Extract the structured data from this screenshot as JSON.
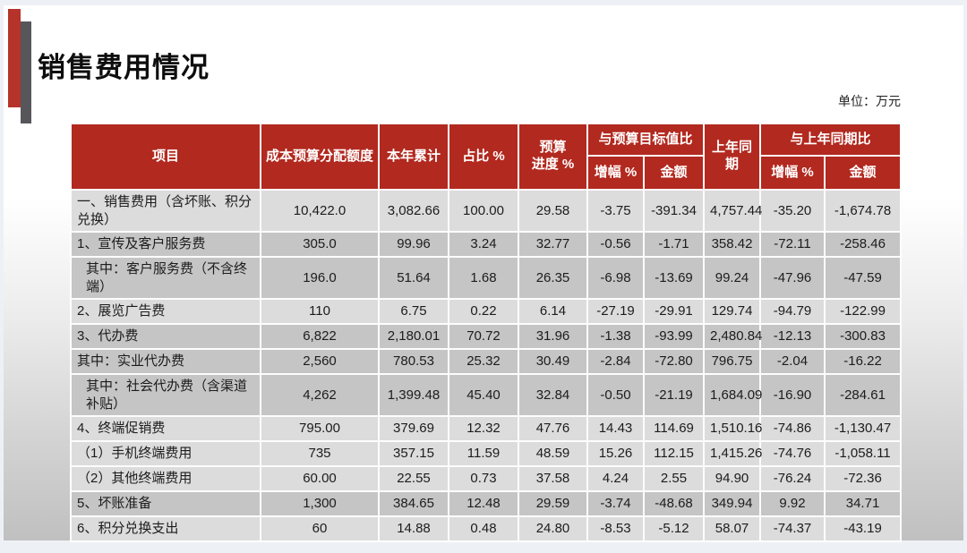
{
  "slide": {
    "title": "销售费用情况",
    "unit_note": "单位：万元",
    "colors": {
      "header_red": "#b2291f",
      "accent_red": "#b5332a",
      "accent_gray": "#57565a",
      "row_light": "#dcdcdc",
      "row_dark": "#c5c5c5"
    }
  },
  "table": {
    "header": {
      "item": "项目",
      "budget_quota": "成本预算分配额度",
      "ytd_total": "本年累计",
      "share_pct": "占比 %",
      "budget_progress_pct": "预算\n进度 %",
      "vs_budget_target": "与预算目标值比",
      "vs_budget_growth_pct": "增幅 %",
      "vs_budget_amount": "金额",
      "last_year_same_period": "上年同期",
      "vs_last_year": "与上年同期比",
      "vs_last_year_growth_pct": "增幅 %",
      "vs_last_year_amount": "金额"
    },
    "rows": [
      {
        "label": "一、销售费用（含坏账、积分兑换）",
        "shade": "light",
        "indent": false,
        "values": [
          "10,422.0",
          "3,082.66",
          "100.00",
          "29.58",
          "-3.75",
          "-391.34",
          "4,757.44",
          "-35.20",
          "-1,674.78"
        ]
      },
      {
        "label": "1、宣传及客户服务费",
        "shade": "dark",
        "indent": false,
        "values": [
          "305.0",
          "99.96",
          "3.24",
          "32.77",
          "-0.56",
          "-1.71",
          "358.42",
          "-72.11",
          "-258.46"
        ]
      },
      {
        "label": "其中：客户服务费（不含终端）",
        "shade": "dark",
        "indent": true,
        "values": [
          "196.0",
          "51.64",
          "1.68",
          "26.35",
          "-6.98",
          "-13.69",
          "99.24",
          "-47.96",
          "-47.59"
        ]
      },
      {
        "label": "2、展览广告费",
        "shade": "light",
        "indent": false,
        "values": [
          "110",
          "6.75",
          "0.22",
          "6.14",
          "-27.19",
          "-29.91",
          "129.74",
          "-94.79",
          "-122.99"
        ]
      },
      {
        "label": "3、代办费",
        "shade": "dark",
        "indent": false,
        "values": [
          "6,822",
          "2,180.01",
          "70.72",
          "31.96",
          "-1.38",
          "-93.99",
          "2,480.84",
          "-12.13",
          "-300.83"
        ]
      },
      {
        "label": "其中：实业代办费",
        "shade": "dark",
        "indent": false,
        "values": [
          "2,560",
          "780.53",
          "25.32",
          "30.49",
          "-2.84",
          "-72.80",
          "796.75",
          "-2.04",
          "-16.22"
        ]
      },
      {
        "label": "其中：社会代办费（含渠道补贴）",
        "shade": "dark",
        "indent": true,
        "values": [
          "4,262",
          "1,399.48",
          "45.40",
          "32.84",
          "-0.50",
          "-21.19",
          "1,684.09",
          "-16.90",
          "-284.61"
        ]
      },
      {
        "label": "4、终端促销费",
        "shade": "light",
        "indent": false,
        "values": [
          "795.00",
          "379.69",
          "12.32",
          "47.76",
          "14.43",
          "114.69",
          "1,510.16",
          "-74.86",
          "-1,130.47"
        ]
      },
      {
        "label": "（1）手机终端费用",
        "shade": "light",
        "indent": false,
        "values": [
          "735",
          "357.15",
          "11.59",
          "48.59",
          "15.26",
          "112.15",
          "1,415.26",
          "-74.76",
          "-1,058.11"
        ]
      },
      {
        "label": "（2）其他终端费用",
        "shade": "light",
        "indent": false,
        "values": [
          "60.00",
          "22.55",
          "0.73",
          "37.58",
          "4.24",
          "2.55",
          "94.90",
          "-76.24",
          "-72.36"
        ]
      },
      {
        "label": "5、坏账准备",
        "shade": "dark",
        "indent": false,
        "values": [
          "1,300",
          "384.65",
          "12.48",
          "29.59",
          "-3.74",
          "-48.68",
          "349.94",
          "9.92",
          "34.71"
        ]
      },
      {
        "label": "6、积分兑换支出",
        "shade": "light",
        "indent": false,
        "values": [
          "60",
          "14.88",
          "0.48",
          "24.80",
          "-8.53",
          "-5.12",
          "58.07",
          "-74.37",
          "-43.19"
        ]
      }
    ]
  }
}
